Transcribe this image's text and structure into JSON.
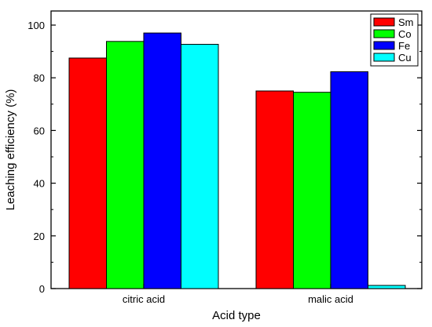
{
  "chart_data": {
    "type": "bar",
    "title": "",
    "xlabel": "Acid type",
    "ylabel": "Leaching efficiency (%)",
    "categories": [
      "citric acid",
      "malic acid"
    ],
    "series": [
      {
        "name": "Sm",
        "values": [
          87.5,
          75.0
        ],
        "color": "#ff0000"
      },
      {
        "name": "Co",
        "values": [
          93.8,
          74.5
        ],
        "color": "#00ff00"
      },
      {
        "name": "Fe",
        "values": [
          97.0,
          82.3
        ],
        "color": "#0000ff"
      },
      {
        "name": "Cu",
        "values": [
          92.7,
          1.2
        ],
        "color": "#00ffff"
      }
    ],
    "ylim": [
      0,
      105
    ],
    "yticks": [
      "0",
      "20",
      "40",
      "60",
      "80",
      "100"
    ],
    "ytick_values": [
      0,
      20,
      40,
      60,
      80,
      100
    ],
    "grid": false,
    "legend_position": "top-right"
  }
}
